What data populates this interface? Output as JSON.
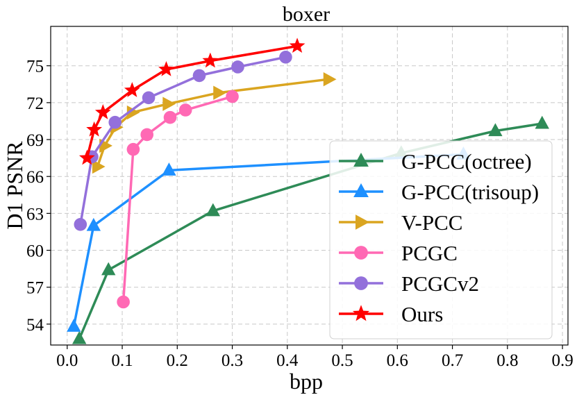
{
  "chart_data": {
    "type": "line",
    "title": "boxer",
    "xlabel": "bpp",
    "ylabel": "D1 PSNR",
    "xlim": [
      -0.03,
      0.91
    ],
    "ylim": [
      52.3,
      78.2
    ],
    "xticks": [
      0.0,
      0.1,
      0.2,
      0.3,
      0.4,
      0.5,
      0.6,
      0.7,
      0.8,
      0.9
    ],
    "xtick_labels": [
      "0.0",
      "0.1",
      "0.2",
      "0.3",
      "0.4",
      "0.5",
      "0.6",
      "0.7",
      "0.8",
      "0.9"
    ],
    "yticks": [
      54,
      57,
      60,
      63,
      66,
      69,
      72,
      75
    ],
    "ytick_labels": [
      "54",
      "57",
      "60",
      "63",
      "66",
      "69",
      "72",
      "75"
    ],
    "grid": true,
    "legend_position": "lower-right",
    "series": [
      {
        "name": "G-PCC(octree)",
        "color": "#2e8b57",
        "marker": "triangle-up",
        "x": [
          0.022,
          0.075,
          0.265,
          0.607,
          0.778,
          0.863
        ],
        "y": [
          52.8,
          58.4,
          63.2,
          67.9,
          69.7,
          70.3
        ]
      },
      {
        "name": "G-PCC(trisoup)",
        "color": "#1e90ff",
        "marker": "triangle-up",
        "x": [
          0.012,
          0.048,
          0.185,
          0.72
        ],
        "y": [
          53.8,
          62.0,
          66.5,
          67.8
        ]
      },
      {
        "name": "V-PCC",
        "color": "#daa520",
        "marker": "triangle-right",
        "x": [
          0.055,
          0.068,
          0.088,
          0.118,
          0.183,
          0.275,
          0.475
        ],
        "y": [
          66.8,
          68.5,
          70.0,
          71.2,
          71.9,
          72.8,
          73.9
        ]
      },
      {
        "name": "PCGC",
        "color": "#ff69b4",
        "marker": "circle",
        "x": [
          0.102,
          0.12,
          0.145,
          0.187,
          0.215,
          0.3
        ],
        "y": [
          55.8,
          68.2,
          69.4,
          70.8,
          71.4,
          72.5
        ]
      },
      {
        "name": "PCGCv2",
        "color": "#9370db",
        "marker": "circle",
        "x": [
          0.024,
          0.045,
          0.087,
          0.148,
          0.24,
          0.31,
          0.397
        ],
        "y": [
          62.1,
          67.6,
          70.4,
          72.4,
          74.2,
          74.9,
          75.7
        ]
      },
      {
        "name": "Ours",
        "color": "#ff0000",
        "marker": "star",
        "x": [
          0.036,
          0.049,
          0.065,
          0.118,
          0.18,
          0.26,
          0.418
        ],
        "y": [
          67.5,
          69.8,
          71.2,
          73.0,
          74.7,
          75.4,
          76.6
        ]
      }
    ]
  }
}
